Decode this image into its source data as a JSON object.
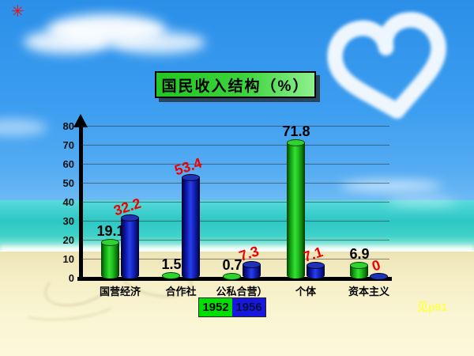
{
  "slide": {
    "title": "国民收入结构（%）",
    "note": "见p91",
    "corner_mark": "✳",
    "colors": {
      "title_bg": "#2fd42f",
      "sky": "#3d9ef0",
      "sea": "#2ec7c4",
      "sand": "#f5eec6",
      "note_text": "#ffff4d",
      "label_1952": "#000000",
      "label_1956": "#ee0000"
    }
  },
  "chart_data": {
    "type": "bar",
    "title": "国民收入结构（%）",
    "categories": [
      "国营经济",
      "合作社",
      "公私合营）",
      "个体",
      "资本主义"
    ],
    "series": [
      {
        "name": "1952",
        "color": "#00e000",
        "label_color": "#000000",
        "values": [
          19.1,
          1.5,
          0.7,
          71.8,
          6.9
        ]
      },
      {
        "name": "1956",
        "color": "#1717dd",
        "label_color": "#ee0000",
        "values": [
          32.2,
          53.4,
          7.3,
          7.1,
          0
        ]
      }
    ],
    "xlabel": "",
    "ylabel": "",
    "ylim": [
      0,
      80
    ],
    "yticks": [
      0,
      10,
      20,
      30,
      40,
      50,
      60,
      70,
      80
    ],
    "grid": true,
    "bar_style": "3d-cylinder",
    "legend_position": "bottom-center"
  }
}
